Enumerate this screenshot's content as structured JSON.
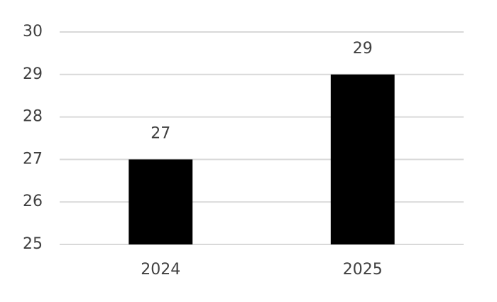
{
  "chart_data": {
    "type": "bar",
    "categories": [
      "2024",
      "2025"
    ],
    "values": [
      27,
      29
    ],
    "color": "#000000",
    "ylim": [
      25,
      30
    ],
    "yticks": [
      25,
      26,
      27,
      28,
      29,
      30
    ],
    "grid": true,
    "value_labels_shown": true
  }
}
